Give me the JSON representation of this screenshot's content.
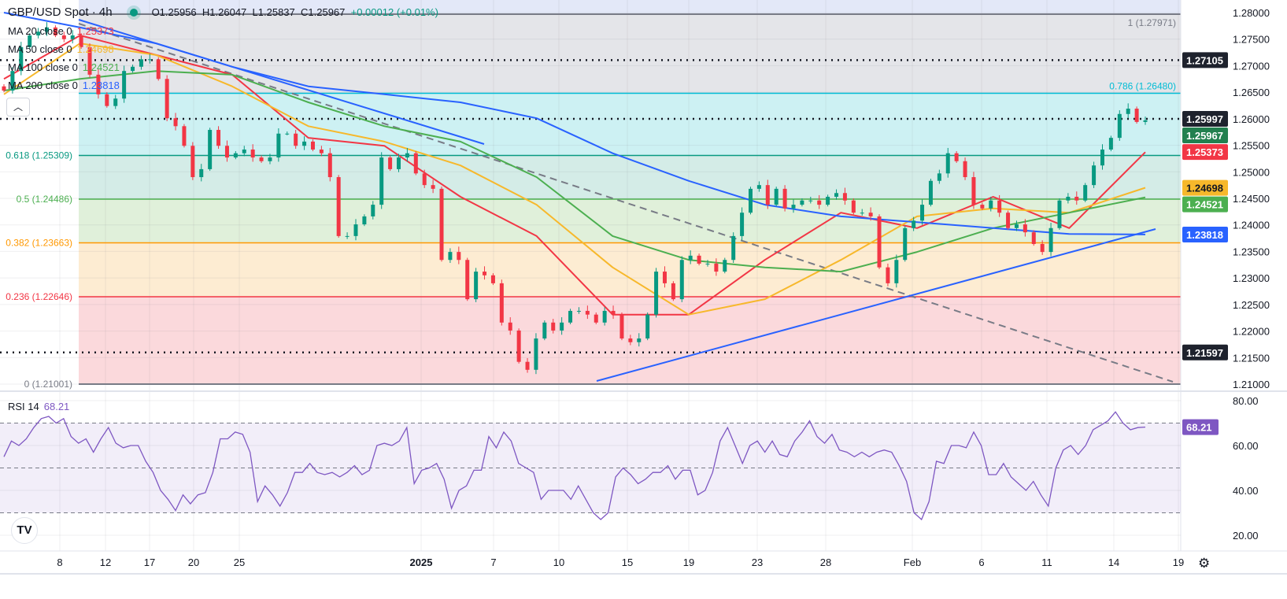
{
  "header": {
    "symbol": "GBP/USD Spot · 4h",
    "open": "O1.25956",
    "high": "H1.26047",
    "low": "L1.25837",
    "close": "C1.25967",
    "change": "+0.00012 (+0.01%)"
  },
  "indicators": [
    {
      "label": "MA 20 close 0",
      "value": "1.25373",
      "color": "#f23645"
    },
    {
      "label": "MA 50 close 0",
      "value": "1.24698",
      "color": "#f7b82b"
    },
    {
      "label": "MA 100 close 0",
      "value": "1.24521",
      "color": "#4caf50"
    },
    {
      "label": "MA 200 close 0",
      "value": "1.23818",
      "color": "#2962ff"
    }
  ],
  "rsi": {
    "label": "RSI 14",
    "value": "68.21",
    "color": "#7e57c2"
  },
  "chart_data": [
    {
      "type": "candlestick",
      "title": "GBP/USD Spot · 4h",
      "ylim": [
        1.2075,
        1.2825
      ],
      "y_ticks": [
        "1.28000",
        "1.27500",
        "1.27000",
        "1.26500",
        "1.26000",
        "1.25500",
        "1.25000",
        "1.24500",
        "1.24000",
        "1.23500",
        "1.23000",
        "1.22500",
        "1.22000",
        "1.21500",
        "1.21000"
      ],
      "x_ticks": [
        "8",
        "12",
        "17",
        "20",
        "25",
        "2025",
        "7",
        "10",
        "15",
        "19",
        "23",
        "28",
        "Feb",
        "6",
        "11",
        "14",
        "19"
      ],
      "closes": [
        1.2653,
        1.269,
        1.2735,
        1.2757,
        1.2764,
        1.2772,
        1.2757,
        1.275,
        1.2757,
        1.2735,
        1.2683,
        1.2646,
        1.2624,
        1.2638,
        1.269,
        1.2698,
        1.2712,
        1.2712,
        1.2675,
        1.2601,
        1.2586,
        1.2549,
        1.249,
        1.2505,
        1.2579,
        1.2549,
        1.2527,
        1.2535,
        1.2542,
        1.2527,
        1.252,
        1.2527,
        1.2572,
        1.2572,
        1.2549,
        1.2557,
        1.2542,
        1.2535,
        1.249,
        1.2379,
        1.2379,
        1.2401,
        1.2416,
        1.2438,
        1.2527,
        1.2505,
        1.2527,
        1.2535,
        1.2497,
        1.2475,
        1.2468,
        1.2334,
        1.2349,
        1.2334,
        1.226,
        1.2312,
        1.2305,
        1.229,
        1.2216,
        1.2201,
        1.2142,
        1.2127,
        1.2186,
        1.2216,
        1.2201,
        1.2216,
        1.2238,
        1.2238,
        1.2231,
        1.2216,
        1.2238,
        1.2231,
        1.2186,
        1.2179,
        1.2186,
        1.2231,
        1.2312,
        1.229,
        1.226,
        1.2334,
        1.2342,
        1.2327,
        1.2327,
        1.2312,
        1.2334,
        1.2379,
        1.2423,
        1.2468,
        1.2475,
        1.2438,
        1.2468,
        1.2431,
        1.2438,
        1.2446,
        1.2446,
        1.2438,
        1.2453,
        1.246,
        1.2446,
        1.2423,
        1.2423,
        1.2416,
        1.232,
        1.229,
        1.2334,
        1.2394,
        1.2408,
        1.2438,
        1.2483,
        1.2497,
        1.2535,
        1.252,
        1.249,
        1.2438,
        1.2431,
        1.2446,
        1.2423,
        1.2394,
        1.2401,
        1.2386,
        1.2364,
        1.2349,
        1.2394,
        1.2446,
        1.2453,
        1.2446,
        1.2475,
        1.2512,
        1.2542,
        1.2564,
        1.2609,
        1.2619,
        1.2594,
        1.2597
      ],
      "moving_averages": [
        {
          "name": "MA 20",
          "color": "#f23645",
          "values": [
            1.2675,
            1.2757,
            1.272,
            1.2683,
            1.2564,
            1.2549,
            1.2453,
            1.2379,
            1.2231,
            1.2231,
            1.2334,
            1.2423,
            1.2394,
            1.2453,
            1.2394,
            1.2537
          ]
        },
        {
          "name": "MA 50",
          "color": "#f7b82b",
          "values": [
            1.2646,
            1.2742,
            1.272,
            1.2661,
            1.2586,
            1.2557,
            1.2512,
            1.2438,
            1.232,
            1.2231,
            1.226,
            1.2334,
            1.2416,
            1.2431,
            1.2423,
            1.247
          ]
        },
        {
          "name": "MA 100",
          "color": "#4caf50",
          "values": [
            1.2653,
            1.2675,
            1.269,
            1.2683,
            1.2631,
            1.2586,
            1.2557,
            1.249,
            1.2379,
            1.2334,
            1.232,
            1.2312,
            1.2349,
            1.2394,
            1.2423,
            1.2452
          ]
        },
        {
          "name": "MA 200",
          "color": "#2962ff",
          "values": [
            1.28,
            1.2772,
            1.2742,
            1.2698,
            1.2661,
            1.2646,
            1.2631,
            1.2601,
            1.2535,
            1.2483,
            1.2438,
            1.2416,
            1.2405,
            1.2394,
            1.2383,
            1.2382
          ]
        }
      ],
      "fib_levels": [
        {
          "ratio": "1",
          "price": 1.27971,
          "label": "1 (1.27971)",
          "color": "#787b86"
        },
        {
          "ratio": "0.786",
          "price": 1.2648,
          "label": "0.786 (1.26480)",
          "color": "#00bcd4"
        },
        {
          "ratio": "0.618",
          "price": 1.25309,
          "label": "0.618 (1.25309)",
          "color": "#089981"
        },
        {
          "ratio": "0.5",
          "price": 1.24486,
          "label": "0.5 (1.24486)",
          "color": "#4caf50"
        },
        {
          "ratio": "0.382",
          "price": 1.23663,
          "label": "0.382 (1.23663)",
          "color": "#ff9800"
        },
        {
          "ratio": "0.236",
          "price": 1.22646,
          "label": "0.236 (1.22646)",
          "color": "#f23645"
        },
        {
          "ratio": "0",
          "price": 1.21001,
          "label": "0 (1.21001)",
          "color": "#787b86"
        }
      ],
      "horizontal_lines": [
        1.27105,
        1.25997,
        1.21597
      ],
      "price_badges": [
        {
          "value": "1.27105",
          "price": 1.27105,
          "bg": "#1e222d",
          "fg": "#ffffff"
        },
        {
          "value": "1.25997",
          "price": 1.25997,
          "bg": "#1e222d",
          "fg": "#ffffff"
        },
        {
          "value": "1.25967",
          "price": 1.25967,
          "bg": "#22804f",
          "fg": "#ffffff"
        },
        {
          "value": "1.25373",
          "price": 1.25373,
          "bg": "#f23645",
          "fg": "#ffffff"
        },
        {
          "value": "1.24698",
          "price": 1.24698,
          "bg": "#f7b82b",
          "fg": "#131722"
        },
        {
          "value": "1.24521",
          "price": 1.24521,
          "bg": "#4caf50",
          "fg": "#ffffff"
        },
        {
          "value": "1.23818",
          "price": 1.23818,
          "bg": "#2962ff",
          "fg": "#ffffff"
        },
        {
          "value": "1.21597",
          "price": 1.21597,
          "bg": "#1e222d",
          "fg": "#ffffff"
        }
      ]
    },
    {
      "type": "line",
      "title": "RSI 14",
      "ylim": [
        15,
        85
      ],
      "y_ticks": [
        "80.00",
        "60.00",
        "40.00",
        "20.00"
      ],
      "bands": [
        70,
        50,
        30
      ],
      "current": "68.21",
      "values": [
        55,
        62,
        60,
        63,
        68,
        72,
        73,
        70,
        72,
        64,
        61,
        63,
        57,
        63,
        68,
        61,
        59,
        60,
        60,
        53,
        48,
        40,
        36,
        31,
        38,
        34,
        38,
        39,
        48,
        63,
        63,
        66,
        65,
        57,
        35,
        42,
        38,
        33,
        39,
        48,
        48,
        52,
        48,
        47,
        48,
        46,
        48,
        51,
        47,
        49,
        60,
        61,
        60,
        62,
        68,
        43,
        49,
        50,
        52,
        45,
        32,
        40,
        42,
        49,
        49,
        64,
        59,
        66,
        62,
        52,
        50,
        48,
        36,
        40,
        40,
        40,
        36,
        42,
        36,
        30,
        27,
        30,
        46,
        50,
        47,
        43,
        45,
        48,
        48,
        51,
        45,
        49,
        49,
        38,
        40,
        48,
        62,
        68,
        60,
        52,
        60,
        62,
        57,
        62,
        56,
        55,
        62,
        66,
        71,
        64,
        61,
        65,
        58,
        57,
        55,
        57,
        55,
        57,
        58,
        57,
        51,
        44,
        30,
        27,
        35,
        53,
        52,
        60,
        60,
        59,
        66,
        60,
        47,
        47,
        52,
        46,
        43,
        40,
        44,
        38,
        33,
        50,
        58,
        60,
        56,
        60,
        67,
        69,
        71,
        75,
        70,
        67,
        68,
        68.21
      ]
    }
  ]
}
